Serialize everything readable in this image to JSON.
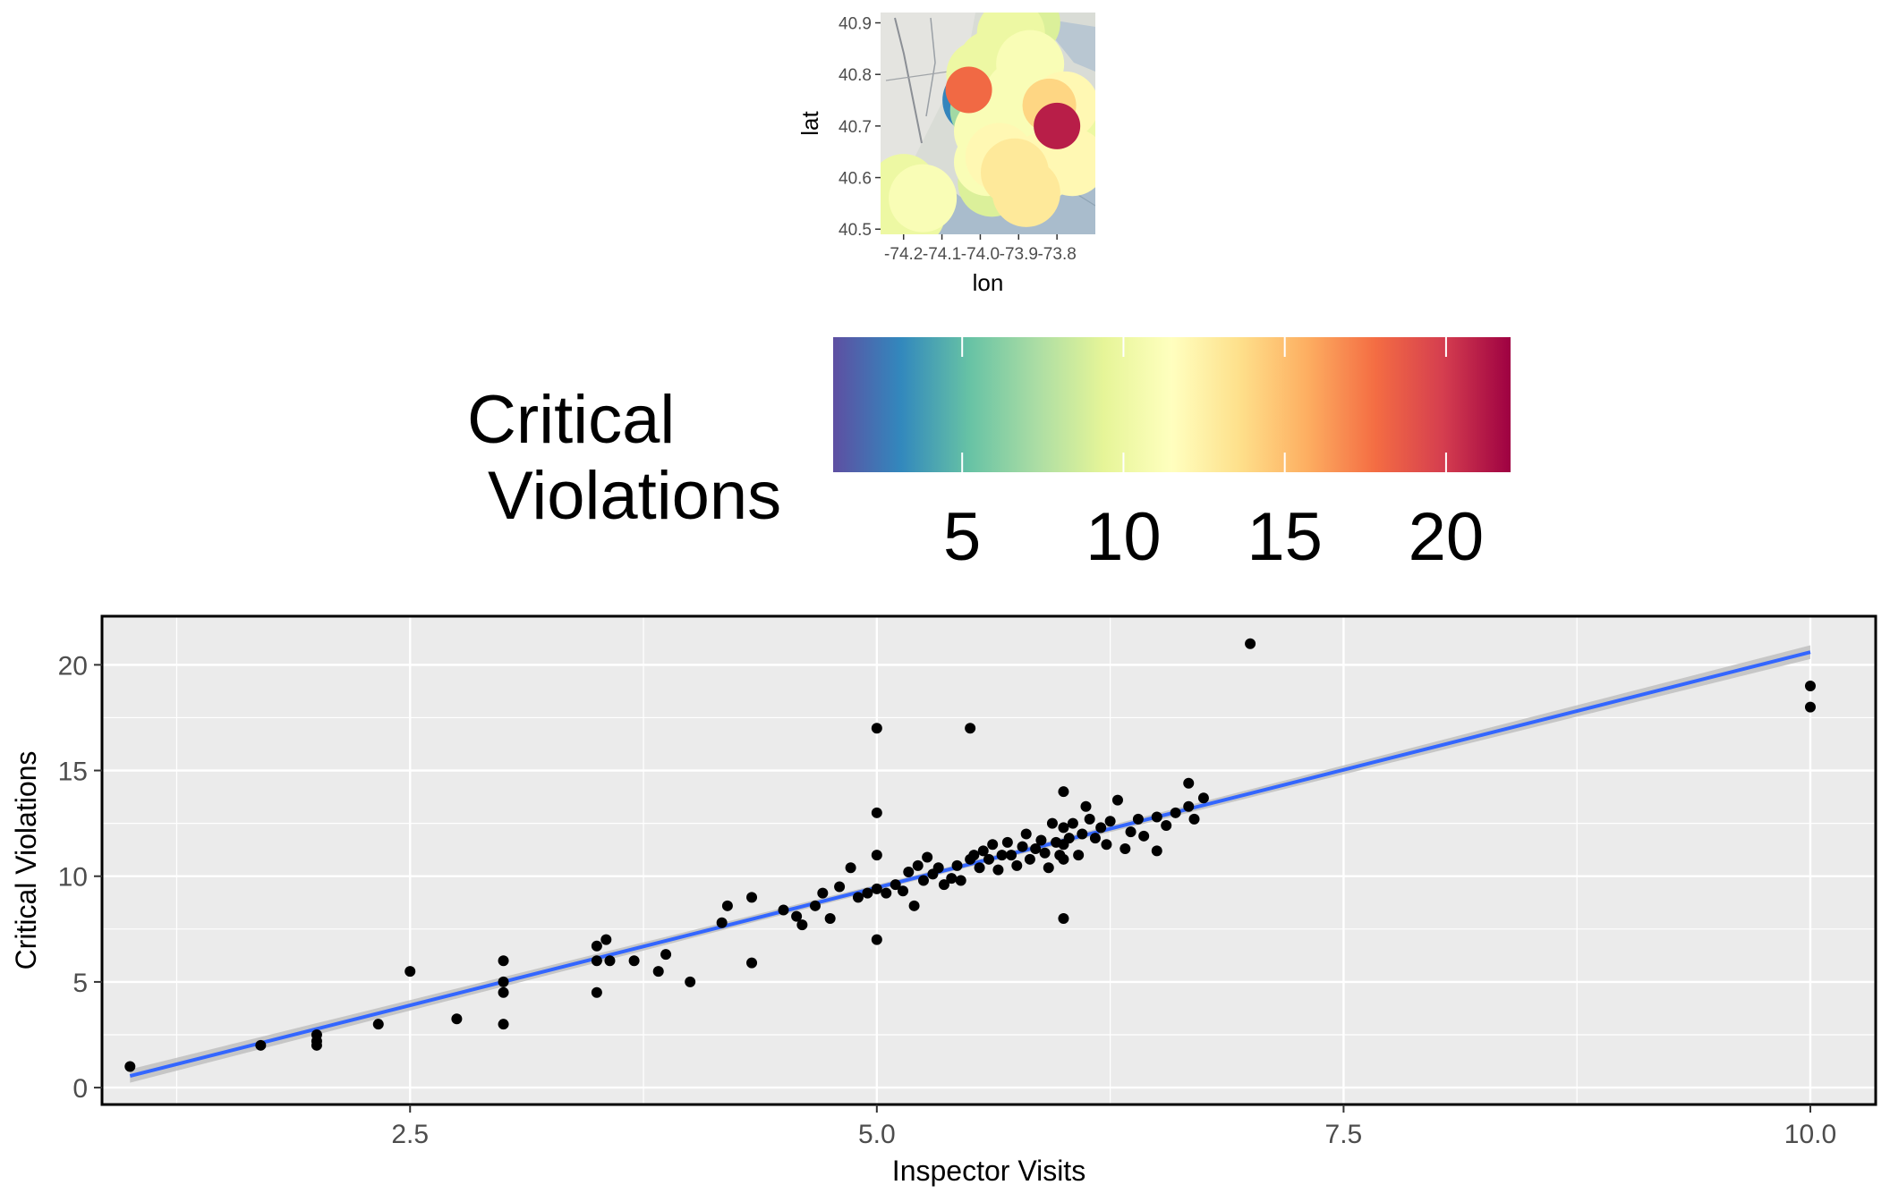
{
  "chart_data": [
    {
      "type": "map-bubble",
      "xlabel": "lon",
      "ylabel": "lat",
      "xlim": [
        -74.26,
        -73.7
      ],
      "ylim": [
        40.49,
        40.92
      ],
      "x_ticks": [
        "-74.2",
        "-74.1",
        "-74.0",
        "-73.9",
        "-73.8"
      ],
      "x_tick_values": [
        -74.2,
        -74.1,
        -74.0,
        -73.9,
        -73.8
      ],
      "y_ticks": [
        "40.5",
        "40.6",
        "40.7",
        "40.8",
        "40.9"
      ],
      "y_tick_values": [
        40.5,
        40.6,
        40.7,
        40.8,
        40.9
      ],
      "points": [
        {
          "lon": -74.23,
          "lat": 40.56,
          "value": 10
        },
        {
          "lon": -74.2,
          "lat": 40.58,
          "value": 10
        },
        {
          "lon": -74.18,
          "lat": 40.53,
          "value": 10
        },
        {
          "lon": -74.15,
          "lat": 40.56,
          "value": 11
        },
        {
          "lon": -74.21,
          "lat": 40.53,
          "value": 10
        },
        {
          "lon": -74.01,
          "lat": 40.75,
          "value": 3
        },
        {
          "lon": -74.03,
          "lat": 40.77,
          "value": 18
        },
        {
          "lon": -73.99,
          "lat": 40.73,
          "value": 7
        },
        {
          "lon": -73.95,
          "lat": 40.76,
          "value": 6
        },
        {
          "lon": -73.9,
          "lat": 40.76,
          "value": 11
        },
        {
          "lon": -73.87,
          "lat": 40.82,
          "value": 11
        },
        {
          "lon": -73.88,
          "lat": 40.9,
          "value": 9
        },
        {
          "lon": -73.92,
          "lat": 40.88,
          "value": 10
        },
        {
          "lon": -73.97,
          "lat": 40.82,
          "value": 10
        },
        {
          "lon": -74.0,
          "lat": 40.8,
          "value": 10
        },
        {
          "lon": -73.86,
          "lat": 40.72,
          "value": 8
        },
        {
          "lon": -73.82,
          "lat": 40.74,
          "value": 14
        },
        {
          "lon": -73.78,
          "lat": 40.74,
          "value": 12
        },
        {
          "lon": -73.8,
          "lat": 40.7,
          "value": 21
        },
        {
          "lon": -73.94,
          "lat": 40.68,
          "value": 11
        },
        {
          "lon": -73.9,
          "lat": 40.66,
          "value": 10
        },
        {
          "lon": -73.95,
          "lat": 40.64,
          "value": 12
        },
        {
          "lon": -73.98,
          "lat": 40.63,
          "value": 11
        },
        {
          "lon": -73.91,
          "lat": 40.61,
          "value": 13
        },
        {
          "lon": -73.84,
          "lat": 40.62,
          "value": 12
        },
        {
          "lon": -73.82,
          "lat": 40.67,
          "value": 10
        },
        {
          "lon": -73.76,
          "lat": 40.63,
          "value": 12
        },
        {
          "lon": -73.75,
          "lat": 40.67,
          "value": 10
        },
        {
          "lon": -73.88,
          "lat": 40.57,
          "value": 13
        },
        {
          "lon": -73.97,
          "lat": 40.59,
          "value": 9
        },
        {
          "lon": -73.93,
          "lat": 40.71,
          "value": 10
        },
        {
          "lon": -73.98,
          "lat": 40.69,
          "value": 11
        }
      ]
    },
    {
      "type": "colorbar",
      "title": "Critical\nViolations",
      "title_lines": [
        "Critical",
        "Violations"
      ],
      "range": [
        1,
        22
      ],
      "ticks": [
        5,
        10,
        15,
        20
      ],
      "tick_labels": [
        "5",
        "10",
        "15",
        "20"
      ],
      "colors": [
        "#5e4fa2",
        "#3288bd",
        "#66c2a5",
        "#abdda4",
        "#e6f598",
        "#ffffbf",
        "#fee08b",
        "#fdae61",
        "#f46d43",
        "#d53e4f",
        "#9e0142"
      ]
    },
    {
      "type": "scatter",
      "xlabel": "Inspector Visits",
      "ylabel": "Critical Violations",
      "xlim": [
        0.85,
        10.35
      ],
      "ylim": [
        -0.8,
        22.3
      ],
      "x_ticks": [
        2.5,
        5.0,
        7.5,
        10.0
      ],
      "x_tick_labels": [
        "2.5",
        "5.0",
        "7.5",
        "10.0"
      ],
      "y_ticks": [
        0,
        5,
        10,
        15,
        20
      ],
      "y_tick_labels": [
        "0",
        "5",
        "10",
        "15",
        "20"
      ],
      "points": [
        [
          1.0,
          1.0
        ],
        [
          1.7,
          2.0
        ],
        [
          2.0,
          2.0
        ],
        [
          2.0,
          2.2
        ],
        [
          2.0,
          2.5
        ],
        [
          2.33,
          3.0
        ],
        [
          2.5,
          5.5
        ],
        [
          2.75,
          3.25
        ],
        [
          3.0,
          3.0
        ],
        [
          3.0,
          4.5
        ],
        [
          3.0,
          5.0
        ],
        [
          3.0,
          6.0
        ],
        [
          3.5,
          4.5
        ],
        [
          3.5,
          6.0
        ],
        [
          3.5,
          6.7
        ],
        [
          3.55,
          7.0
        ],
        [
          3.57,
          6.0
        ],
        [
          3.7,
          6.0
        ],
        [
          3.83,
          5.5
        ],
        [
          3.87,
          6.3
        ],
        [
          4.0,
          5.0
        ],
        [
          4.17,
          7.8
        ],
        [
          4.2,
          8.6
        ],
        [
          4.33,
          9.0
        ],
        [
          4.33,
          5.9
        ],
        [
          4.5,
          8.4
        ],
        [
          4.57,
          8.1
        ],
        [
          4.6,
          7.7
        ],
        [
          4.67,
          8.6
        ],
        [
          4.71,
          9.2
        ],
        [
          4.75,
          8.0
        ],
        [
          4.8,
          9.5
        ],
        [
          4.86,
          10.4
        ],
        [
          4.9,
          9.0
        ],
        [
          4.95,
          9.2
        ],
        [
          5.0,
          7.0
        ],
        [
          5.0,
          9.4
        ],
        [
          5.0,
          11.0
        ],
        [
          5.0,
          13.0
        ],
        [
          5.0,
          17.0
        ],
        [
          5.05,
          9.2
        ],
        [
          5.1,
          9.6
        ],
        [
          5.14,
          9.3
        ],
        [
          5.17,
          10.2
        ],
        [
          5.2,
          8.6
        ],
        [
          5.22,
          10.5
        ],
        [
          5.25,
          9.8
        ],
        [
          5.27,
          10.9
        ],
        [
          5.3,
          10.1
        ],
        [
          5.33,
          10.4
        ],
        [
          5.36,
          9.6
        ],
        [
          5.4,
          9.9
        ],
        [
          5.43,
          10.5
        ],
        [
          5.45,
          9.8
        ],
        [
          5.5,
          10.8
        ],
        [
          5.5,
          17.0
        ],
        [
          5.52,
          11.0
        ],
        [
          5.55,
          10.4
        ],
        [
          5.57,
          11.2
        ],
        [
          5.6,
          10.8
        ],
        [
          5.62,
          11.5
        ],
        [
          5.65,
          10.3
        ],
        [
          5.67,
          11.0
        ],
        [
          5.7,
          11.6
        ],
        [
          5.72,
          11.0
        ],
        [
          5.75,
          10.5
        ],
        [
          5.78,
          11.4
        ],
        [
          5.8,
          12.0
        ],
        [
          5.82,
          10.8
        ],
        [
          5.85,
          11.3
        ],
        [
          5.88,
          11.7
        ],
        [
          5.9,
          11.1
        ],
        [
          5.92,
          10.4
        ],
        [
          5.94,
          12.5
        ],
        [
          5.96,
          11.6
        ],
        [
          5.98,
          11.0
        ],
        [
          6.0,
          8.0
        ],
        [
          6.0,
          10.8
        ],
        [
          6.0,
          11.5
        ],
        [
          6.0,
          12.3
        ],
        [
          6.0,
          14.0
        ],
        [
          6.03,
          11.8
        ],
        [
          6.05,
          12.5
        ],
        [
          6.08,
          11.0
        ],
        [
          6.1,
          12.0
        ],
        [
          6.12,
          13.3
        ],
        [
          6.14,
          12.7
        ],
        [
          6.17,
          11.8
        ],
        [
          6.2,
          12.3
        ],
        [
          6.23,
          11.5
        ],
        [
          6.25,
          12.6
        ],
        [
          6.29,
          13.6
        ],
        [
          6.33,
          11.3
        ],
        [
          6.36,
          12.1
        ],
        [
          6.4,
          12.7
        ],
        [
          6.43,
          11.9
        ],
        [
          6.5,
          12.8
        ],
        [
          6.5,
          11.2
        ],
        [
          6.55,
          12.4
        ],
        [
          6.6,
          13.0
        ],
        [
          6.67,
          14.4
        ],
        [
          6.67,
          13.3
        ],
        [
          6.7,
          12.7
        ],
        [
          6.75,
          13.7
        ],
        [
          7.0,
          21.0
        ],
        [
          10.0,
          18.0
        ],
        [
          10.0,
          19.0
        ]
      ],
      "fit_line": {
        "x": [
          1.0,
          10.0
        ],
        "y": [
          0.55,
          20.6
        ],
        "color": "#3366ff"
      },
      "colors": {
        "panel": "#ebebeb",
        "point": "#000000",
        "fit": "#3366ff",
        "band": "#bdbdbd"
      }
    }
  ]
}
